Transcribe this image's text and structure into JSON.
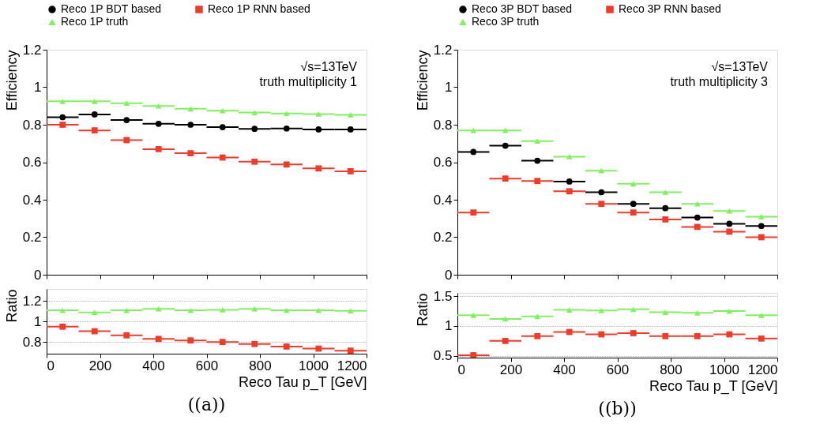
{
  "chart_data": [
    {
      "type": "scatter",
      "ylabel": "Efficiency",
      "xlim": [
        0,
        1200
      ],
      "xticks": [
        0,
        200,
        400,
        600,
        800,
        1000,
        1200
      ],
      "ylim": [
        0,
        1.2
      ],
      "yticks": [
        0,
        0.2,
        0.4,
        0.6,
        0.8,
        1,
        1.2
      ],
      "tick_labels": "y",
      "legend": "top",
      "grid": false,
      "annotations": [
        "√s=13TeV",
        "truth multiplicity 1"
      ],
      "x": [
        60,
        180,
        300,
        420,
        540,
        660,
        780,
        900,
        1020,
        1140
      ],
      "series": [
        {
          "name": "Reco 1P BDT based",
          "color": "#000000",
          "marker": "circle",
          "values": [
            0.84,
            0.855,
            0.825,
            0.805,
            0.8,
            0.787,
            0.778,
            0.78,
            0.775,
            0.775
          ],
          "xerrors": [
            60,
            60,
            60,
            60,
            60,
            60,
            60,
            60,
            60,
            60
          ]
        },
        {
          "name": "Reco 1P RNN based",
          "color": "#ee3b2a",
          "marker": "square",
          "values": [
            0.8,
            0.77,
            0.718,
            0.67,
            0.648,
            0.625,
            0.603,
            0.588,
            0.567,
            0.552
          ],
          "xerrors": [
            60,
            60,
            60,
            60,
            60,
            60,
            60,
            60,
            60,
            60
          ]
        },
        {
          "name": "Reco 1P truth",
          "color": "#80f060",
          "marker": "triangle",
          "values": [
            0.925,
            0.925,
            0.915,
            0.9,
            0.885,
            0.875,
            0.865,
            0.86,
            0.857,
            0.853
          ],
          "xerrors": [
            60,
            60,
            60,
            60,
            60,
            60,
            60,
            60,
            60,
            60
          ]
        }
      ]
    },
    {
      "type": "scatter",
      "ylabel": "Efficiency",
      "xlim": [
        0,
        1200
      ],
      "xticks": [
        0,
        200,
        400,
        600,
        800,
        1000,
        1200
      ],
      "ylim": [
        0,
        1.2
      ],
      "yticks": [
        0,
        0.2,
        0.4,
        0.6,
        0.8,
        1,
        1.2
      ],
      "tick_labels": "y",
      "legend": "top",
      "grid": false,
      "annotations": [
        "√s=13TeV",
        "truth multiplicity 3"
      ],
      "x": [
        60,
        180,
        300,
        420,
        540,
        660,
        780,
        900,
        1020,
        1140
      ],
      "series": [
        {
          "name": "Reco 3P BDT based",
          "color": "#000000",
          "marker": "circle",
          "values": [
            0.655,
            0.688,
            0.608,
            0.497,
            0.44,
            0.378,
            0.355,
            0.305,
            0.272,
            0.26
          ],
          "xerrors": [
            60,
            60,
            60,
            60,
            60,
            60,
            60,
            60,
            60,
            60
          ]
        },
        {
          "name": "Reco 3P RNN based",
          "color": "#ee3b2a",
          "marker": "square",
          "values": [
            0.332,
            0.513,
            0.5,
            0.445,
            0.378,
            0.332,
            0.295,
            0.255,
            0.23,
            0.2
          ],
          "xerrors": [
            60,
            60,
            60,
            60,
            60,
            60,
            60,
            60,
            60,
            60
          ]
        },
        {
          "name": "Reco 3P truth",
          "color": "#80f060",
          "marker": "triangle",
          "values": [
            0.77,
            0.77,
            0.713,
            0.63,
            0.555,
            0.485,
            0.44,
            0.378,
            0.34,
            0.31
          ],
          "xerrors": [
            60,
            60,
            60,
            60,
            60,
            60,
            60,
            60,
            60,
            60
          ]
        }
      ]
    },
    {
      "type": "scatter",
      "ylabel": "Ratio",
      "xlabel": "Reco Tau p_T [GeV]",
      "xlim": [
        0,
        1200
      ],
      "xticks": [
        0,
        200,
        400,
        600,
        800,
        1000,
        1200
      ],
      "ylim": [
        0.685,
        1.32
      ],
      "yticks": [
        0.8,
        1,
        1.2
      ],
      "grid": "y",
      "annotations": [
        "((a))"
      ],
      "x": [
        60,
        180,
        300,
        420,
        540,
        660,
        780,
        900,
        1020,
        1140
      ],
      "series": [
        {
          "color": "#ee3b2a",
          "marker": "square",
          "values": [
            0.95,
            0.905,
            0.865,
            0.83,
            0.815,
            0.8,
            0.78,
            0.755,
            0.735,
            0.715
          ],
          "xerrors": [
            60,
            60,
            60,
            60,
            60,
            60,
            60,
            60,
            60,
            60
          ]
        },
        {
          "color": "#80f060",
          "marker": "triangle",
          "values": [
            1.11,
            1.09,
            1.11,
            1.125,
            1.11,
            1.115,
            1.125,
            1.11,
            1.11,
            1.105
          ],
          "xerrors": [
            60,
            60,
            60,
            60,
            60,
            60,
            60,
            60,
            60,
            60
          ]
        }
      ]
    },
    {
      "type": "scatter",
      "ylabel": "Ratio",
      "xlabel": "Reco Tau p_T [GeV]",
      "xlim": [
        0,
        1200
      ],
      "xticks": [
        0,
        200,
        400,
        600,
        800,
        1000,
        1200
      ],
      "ylim": [
        0.47,
        1.555
      ],
      "yticks": [
        0.5,
        1,
        1.5
      ],
      "grid": "y",
      "annotations": [
        "((b))"
      ],
      "x": [
        60,
        180,
        300,
        420,
        540,
        660,
        780,
        900,
        1020,
        1140
      ],
      "series": [
        {
          "color": "#ee3b2a",
          "marker": "square",
          "values": [
            0.51,
            0.75,
            0.83,
            0.9,
            0.86,
            0.88,
            0.83,
            0.83,
            0.86,
            0.79
          ],
          "xerrors": [
            60,
            60,
            60,
            60,
            60,
            60,
            60,
            60,
            60,
            60
          ]
        },
        {
          "color": "#80f060",
          "marker": "triangle",
          "values": [
            1.18,
            1.12,
            1.16,
            1.27,
            1.26,
            1.28,
            1.23,
            1.22,
            1.25,
            1.18
          ],
          "xerrors": [
            60,
            60,
            60,
            60,
            60,
            60,
            60,
            60,
            60,
            60
          ]
        }
      ]
    }
  ]
}
